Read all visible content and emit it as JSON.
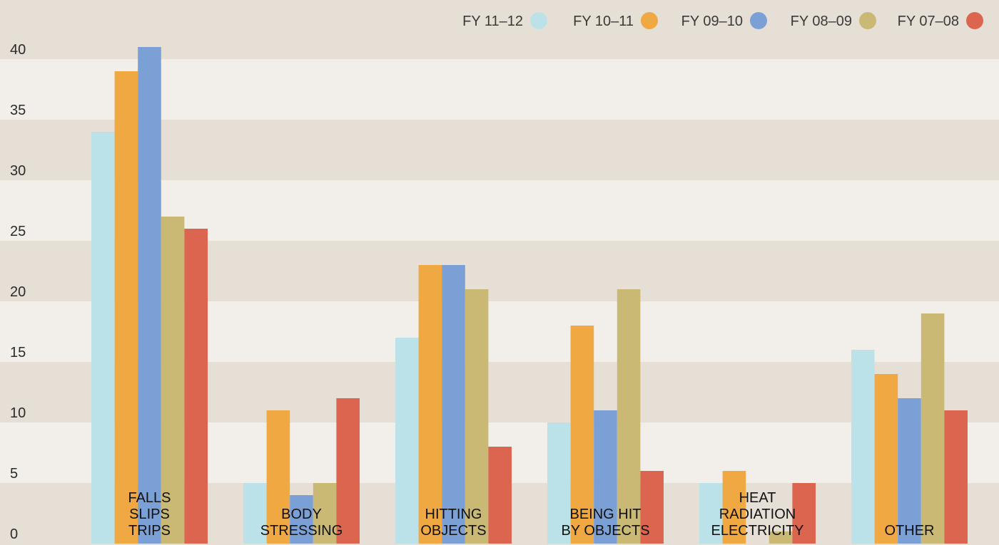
{
  "chart_data": {
    "type": "bar",
    "title": "",
    "xlabel": "",
    "ylabel": "",
    "ylim": [
      0,
      42.5
    ],
    "yticks": [
      0,
      5,
      10,
      15,
      20,
      25,
      30,
      35,
      40
    ],
    "grid": "alternating horizontal bands",
    "legend_position": "top-right",
    "categories": [
      [
        "FALLS",
        "SLIPS",
        "TRIPS"
      ],
      [
        "BODY",
        "STRESSING"
      ],
      [
        "HITTING",
        "OBJECTS"
      ],
      [
        "BEING HIT",
        "BY OBJECTS"
      ],
      [
        "HEAT",
        "RADIATION",
        "ELECTRICITY"
      ],
      [
        "OTHER"
      ]
    ],
    "series": [
      {
        "name": "FY 11–12",
        "color": "#bce2e9",
        "values": [
          34,
          5,
          17,
          10,
          5,
          16
        ]
      },
      {
        "name": "FY 10–11",
        "color": "#f0a843",
        "values": [
          39,
          11,
          23,
          18,
          6,
          14
        ]
      },
      {
        "name": "FY 09–10",
        "color": "#7ba0d6",
        "values": [
          41,
          4,
          23,
          11,
          0,
          12
        ]
      },
      {
        "name": "FY 08–09",
        "color": "#c9b974",
        "values": [
          27,
          5,
          21,
          21,
          1,
          19
        ]
      },
      {
        "name": "FY 07–08",
        "color": "#dc6550",
        "values": [
          26,
          12,
          8,
          6,
          5,
          11
        ]
      }
    ],
    "band_colors": [
      "#e6dfd5",
      "#f2efea"
    ]
  }
}
